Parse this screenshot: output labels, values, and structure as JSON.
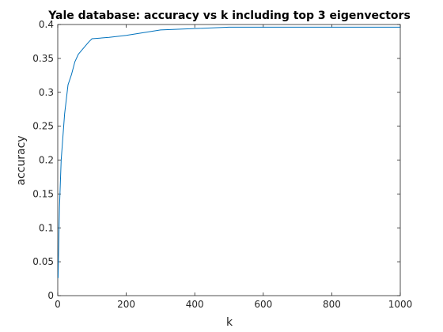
{
  "chart_data": {
    "type": "line",
    "title": "Yale database: accuracy vs k including top 3 eigenvectors",
    "xlabel": "k",
    "ylabel": "accuracy",
    "xlim": [
      0,
      1000
    ],
    "ylim": [
      0,
      0.4
    ],
    "x_ticks": [
      0,
      200,
      400,
      600,
      800,
      1000
    ],
    "x_tick_labels": [
      "0",
      "200",
      "400",
      "600",
      "800",
      "1000"
    ],
    "y_ticks": [
      0,
      0.05,
      0.1,
      0.15,
      0.2,
      0.25,
      0.3,
      0.35,
      0.4
    ],
    "y_tick_labels": [
      "0",
      "0.05",
      "0.1",
      "0.15",
      "0.2",
      "0.25",
      "0.3",
      "0.35",
      "0.4"
    ],
    "grid": false,
    "series": [
      {
        "color": "#0072bd",
        "x": [
          1,
          5,
          10,
          20,
          30,
          40,
          50,
          60,
          70,
          80,
          90,
          100,
          150,
          200,
          300,
          400,
          500,
          600,
          700,
          800,
          900,
          1000
        ],
        "y": [
          0.026,
          0.13,
          0.2,
          0.268,
          0.311,
          0.326,
          0.345,
          0.356,
          0.362,
          0.368,
          0.374,
          0.379,
          0.381,
          0.384,
          0.392,
          0.394,
          0.396,
          0.396,
          0.396,
          0.396,
          0.396,
          0.396
        ]
      }
    ]
  }
}
